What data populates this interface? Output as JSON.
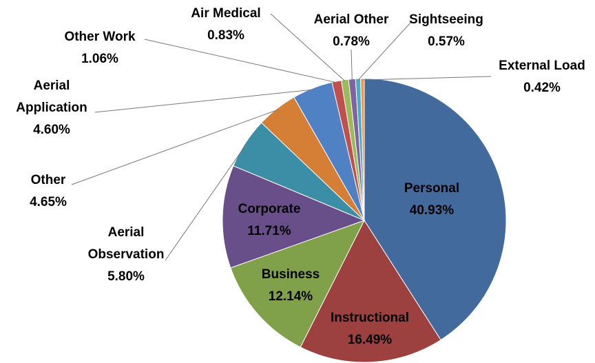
{
  "chart_data": {
    "type": "pie",
    "categories": [
      "Personal",
      "Instructional",
      "Business",
      "Corporate",
      "Aerial Observation",
      "Other",
      "Aerial Application",
      "Other Work",
      "Air Medical",
      "Aerial Other",
      "Sightseeing",
      "External Load"
    ],
    "values": [
      40.93,
      16.49,
      12.14,
      11.71,
      5.8,
      4.65,
      4.6,
      1.06,
      0.83,
      0.78,
      0.57,
      0.42
    ],
    "value_labels": [
      "40.93%",
      "16.49%",
      "12.14%",
      "11.71%",
      "5.80%",
      "4.65%",
      "4.60%",
      "1.06%",
      "0.83%",
      "0.78%",
      "0.57%",
      "0.42%"
    ],
    "colors": [
      "#426a9c",
      "#9c4140",
      "#80a04a",
      "#684f8a",
      "#3c8da6",
      "#d47e36",
      "#4f81c4",
      "#c0504d",
      "#9bbb59",
      "#8064a2",
      "#4bacc6",
      "#f79646"
    ]
  }
}
